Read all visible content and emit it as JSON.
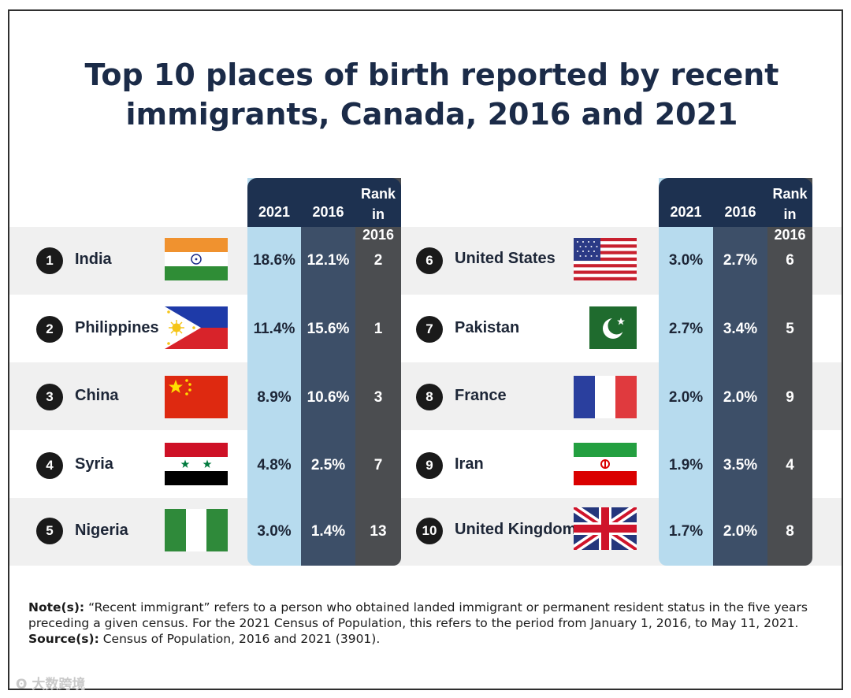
{
  "title_line1": "Top 10 places of birth reported by recent",
  "title_line2": "immigrants, Canada, 2016 and 2021",
  "headers": {
    "c2021": "2021",
    "c2016": "2016",
    "rank_line1": "Rank",
    "rank_line2": "in 2016"
  },
  "chart_data": {
    "type": "table",
    "title": "Top 10 places of birth reported by recent immigrants, Canada, 2016 and 2021",
    "columns": [
      "2021",
      "2016",
      "Rank in 2016"
    ],
    "rows": [
      {
        "rank": "1",
        "country": "India",
        "flag": "india-flag",
        "v2021": "18.6%",
        "v2016": "12.1%",
        "rank2016": "2"
      },
      {
        "rank": "2",
        "country": "Philippines",
        "flag": "philippines-flag",
        "v2021": "11.4%",
        "v2016": "15.6%",
        "rank2016": "1"
      },
      {
        "rank": "3",
        "country": "China",
        "flag": "china-flag",
        "v2021": "8.9%",
        "v2016": "10.6%",
        "rank2016": "3"
      },
      {
        "rank": "4",
        "country": "Syria",
        "flag": "syria-flag",
        "v2021": "4.8%",
        "v2016": "2.5%",
        "rank2016": "7"
      },
      {
        "rank": "5",
        "country": "Nigeria",
        "flag": "nigeria-flag",
        "v2021": "3.0%",
        "v2016": "1.4%",
        "rank2016": "13"
      },
      {
        "rank": "6",
        "country": "United States",
        "flag": "usa-flag",
        "v2021": "3.0%",
        "v2016": "2.7%",
        "rank2016": "6"
      },
      {
        "rank": "7",
        "country": "Pakistan",
        "flag": "pakistan-flag",
        "v2021": "2.7%",
        "v2016": "3.4%",
        "rank2016": "5"
      },
      {
        "rank": "8",
        "country": "France",
        "flag": "france-flag",
        "v2021": "2.0%",
        "v2016": "2.0%",
        "rank2016": "9"
      },
      {
        "rank": "9",
        "country": "Iran",
        "flag": "iran-flag",
        "v2021": "1.9%",
        "v2016": "3.5%",
        "rank2016": "4"
      },
      {
        "rank": "10",
        "country": "United Kingdom",
        "flag": "uk-flag",
        "v2021": "1.7%",
        "v2016": "2.0%",
        "rank2016": "8"
      }
    ]
  },
  "colors": {
    "header": "#1d3150",
    "col2021": "#b7dbee",
    "col2016": "#3d4f68",
    "colRank": "#4b4d50"
  },
  "note_label": "Note(s):",
  "note_text": " “Recent immigrant” refers to a person who obtained landed immigrant or permanent resident status in the five years preceding a given census. For the 2021 Census of Population, this refers to the period from January 1, 2016, to May 11, 2021.",
  "source_label": "Source(s):",
  "source_text": " Census of Population, 2016 and 2021 (3901).",
  "watermark": "大数跨境"
}
